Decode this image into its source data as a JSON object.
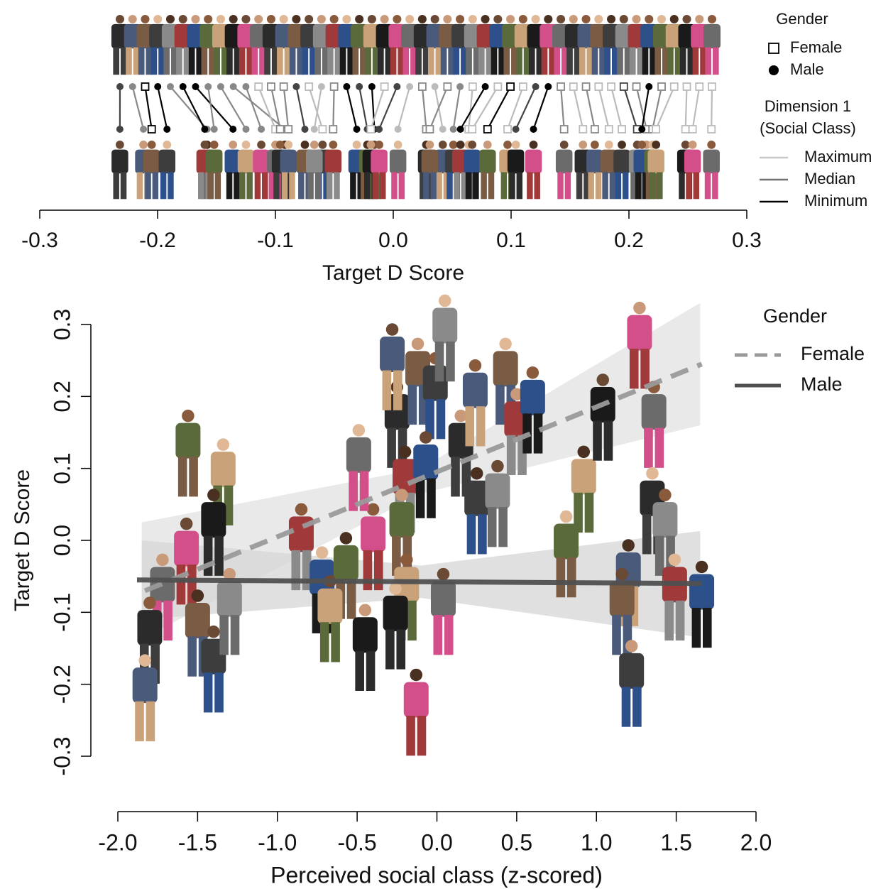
{
  "chart_data": [
    {
      "type": "slope",
      "xlabel": "Target D Score",
      "xlim": [
        -0.3,
        0.3
      ],
      "xticks": [
        -0.3,
        -0.2,
        -0.1,
        {
          "value": 0,
          "label": "0.0"
        },
        0.1,
        0.2,
        0.3
      ],
      "gender_legend": {
        "title": "Gender",
        "entries": [
          {
            "name": "Female",
            "shape": "square"
          },
          {
            "name": "Male",
            "shape": "circle"
          }
        ]
      },
      "class_legend": {
        "title": [
          "Dimension 1",
          "(Social Class)"
        ],
        "entries": [
          {
            "name": "Maximum",
            "color": "#c8c8c8"
          },
          {
            "name": "Median",
            "color": "#707070"
          },
          {
            "name": "Minimum",
            "color": "#000000"
          }
        ]
      },
      "targets": [
        {
          "gender": "Male",
          "color": "#444444",
          "d": -0.232
        },
        {
          "gender": "Male",
          "color": "#888888",
          "d": -0.212
        },
        {
          "gender": "Female",
          "color": "#000000",
          "d": -0.205
        },
        {
          "gender": "Male",
          "color": "#000000",
          "d": -0.192
        },
        {
          "gender": "Male",
          "color": "#888888",
          "d": -0.158
        },
        {
          "gender": "Male",
          "color": "#000000",
          "d": -0.16
        },
        {
          "gender": "Male",
          "color": "#000000",
          "d": -0.136
        },
        {
          "gender": "Male",
          "color": "#888888",
          "d": -0.152
        },
        {
          "gender": "Male",
          "color": "#888888",
          "d": -0.125
        },
        {
          "gender": "Male",
          "color": "#888888",
          "d": -0.092
        },
        {
          "gender": "Male",
          "color": "#888888",
          "d": -0.112
        },
        {
          "gender": "Female",
          "color": "#bbbbbb",
          "d": -0.1
        },
        {
          "gender": "Female",
          "color": "#888888",
          "d": -0.096
        },
        {
          "gender": "Female",
          "color": "#888888",
          "d": -0.089
        },
        {
          "gender": "Male",
          "color": "#444444",
          "d": -0.075
        },
        {
          "gender": "Female",
          "color": "#bbbbbb",
          "d": -0.06
        },
        {
          "gender": "Male",
          "color": "#bbbbbb",
          "d": -0.067
        },
        {
          "gender": "Female",
          "color": "#888888",
          "d": -0.051
        },
        {
          "gender": "Male",
          "color": "#000000",
          "d": -0.031
        },
        {
          "gender": "Male",
          "color": "#444444",
          "d": -0.022
        },
        {
          "gender": "Male",
          "color": "#000000",
          "d": -0.016
        },
        {
          "gender": "Female",
          "color": "#bbbbbb",
          "d": -0.019
        },
        {
          "gender": "Male",
          "color": "#444444",
          "d": -0.012
        },
        {
          "gender": "Male",
          "color": "#bbbbbb",
          "d": 0.004
        },
        {
          "gender": "Female",
          "color": "#888888",
          "d": 0.028
        },
        {
          "gender": "Male",
          "color": "#bbbbbb",
          "d": 0.042
        },
        {
          "gender": "Female",
          "color": "#888888",
          "d": 0.031
        },
        {
          "gender": "Male",
          "color": "#888888",
          "d": 0.051
        },
        {
          "gender": "Female",
          "color": "#bbbbbb",
          "d": 0.064
        },
        {
          "gender": "Male",
          "color": "#000000",
          "d": 0.057
        },
        {
          "gender": "Female",
          "color": "#bbbbbb",
          "d": 0.067
        },
        {
          "gender": "Female",
          "color": "#000000",
          "d": 0.08
        },
        {
          "gender": "Female",
          "color": "#bbbbbb",
          "d": 0.097
        },
        {
          "gender": "Male",
          "color": "#444444",
          "d": 0.104
        },
        {
          "gender": "Male",
          "color": "#000000",
          "d": 0.119
        },
        {
          "gender": "Female",
          "color": "#888888",
          "d": 0.145
        },
        {
          "gender": "Female",
          "color": "#bbbbbb",
          "d": 0.161
        },
        {
          "gender": "Female",
          "color": "#888888",
          "d": 0.171
        },
        {
          "gender": "Female",
          "color": "#bbbbbb",
          "d": 0.183
        },
        {
          "gender": "Female",
          "color": "#bbbbbb",
          "d": 0.194
        },
        {
          "gender": "Female",
          "color": "#444444",
          "d": 0.207
        },
        {
          "gender": "Female",
          "color": "#888888",
          "d": 0.215
        },
        {
          "gender": "Male",
          "color": "#000000",
          "d": 0.211
        },
        {
          "gender": "Female",
          "color": "#888888",
          "d": 0.22
        },
        {
          "gender": "Female",
          "color": "#bbbbbb",
          "d": 0.223
        },
        {
          "gender": "Female",
          "color": "#bbbbbb",
          "d": 0.248
        },
        {
          "gender": "Female",
          "color": "#bbbbbb",
          "d": 0.254
        },
        {
          "gender": "Female",
          "color": "#bbbbbb",
          "d": 0.27
        }
      ]
    },
    {
      "type": "scatter",
      "xlabel": "Perceived social class (z-scored)",
      "ylabel": "Target D Score",
      "xlim": [
        -2,
        2
      ],
      "xticks": [
        {
          "value": -2,
          "label": "-2.0"
        },
        -1.5,
        {
          "value": -1,
          "label": "-1.0"
        },
        -0.5,
        {
          "value": 0,
          "label": "0.0"
        },
        0.5,
        {
          "value": 1,
          "label": "1.0"
        },
        1.5,
        {
          "value": 2,
          "label": "2.0"
        }
      ],
      "ylim": [
        -0.3,
        0.3
      ],
      "yticks": [
        -0.3,
        -0.2,
        -0.1,
        {
          "value": 0,
          "label": "0.0"
        },
        0.1,
        0.2,
        0.3
      ],
      "legend_title": "Gender",
      "points": {
        "x": [
          -1.56,
          -1.34,
          -1.4,
          -1.57,
          -1.72,
          -1.8,
          -1.83,
          -1.5,
          -1.4,
          -1.3,
          -0.85,
          -0.72,
          -0.57,
          -0.67,
          -0.45,
          -0.4,
          -0.49,
          -0.25,
          -0.28,
          -0.12,
          -0.01,
          0.05,
          -0.2,
          -0.07,
          -0.22,
          -0.19,
          -0.26,
          -0.13,
          0.04,
          0.15,
          0.24,
          0.43,
          0.25,
          0.38,
          0.5,
          0.6,
          0.81,
          0.92,
          1.04,
          1.27,
          1.36,
          1.35,
          1.2,
          1.16,
          1.22,
          1.43,
          1.49,
          1.66
        ],
        "y": [
          0.12,
          0.08,
          0.01,
          -0.03,
          -0.08,
          -0.14,
          -0.22,
          -0.13,
          -0.18,
          -0.1,
          -0.01,
          -0.07,
          -0.05,
          -0.11,
          -0.15,
          -0.01,
          0.1,
          0.16,
          0.24,
          0.22,
          0.2,
          0.28,
          0.07,
          0.09,
          0.01,
          -0.08,
          -0.12,
          -0.24,
          -0.1,
          0.12,
          0.19,
          0.22,
          0.04,
          0.05,
          0.15,
          0.18,
          -0.02,
          0.07,
          0.17,
          0.27,
          0.16,
          0.04,
          -0.06,
          -0.1,
          -0.2,
          0.01,
          -0.08,
          -0.09
        ]
      },
      "series": [
        {
          "name": "Female",
          "color": "#9a9a9a",
          "dash": true,
          "x": [
            -1.83,
            1.66
          ],
          "values": [
            -0.07,
            0.245
          ],
          "band": {
            "color": "#e2e2e2",
            "x": [
              -1.85,
              -0.1,
              1.65
            ],
            "lower": [
              -0.137,
              0.065,
              0.16
            ],
            "upper": [
              0.025,
              0.1,
              0.33
            ]
          }
        },
        {
          "name": "Male",
          "color": "#505050",
          "dash": false,
          "x": [
            -1.88,
            1.66
          ],
          "values": [
            -0.055,
            -0.06
          ],
          "band": {
            "color": "#d6d6d6",
            "x": [
              -1.85,
              -0.1,
              1.65
            ],
            "lower": [
              -0.11,
              -0.08,
              -0.135
            ],
            "upper": [
              0,
              -0.035,
              0.013
            ]
          }
        }
      ]
    }
  ]
}
